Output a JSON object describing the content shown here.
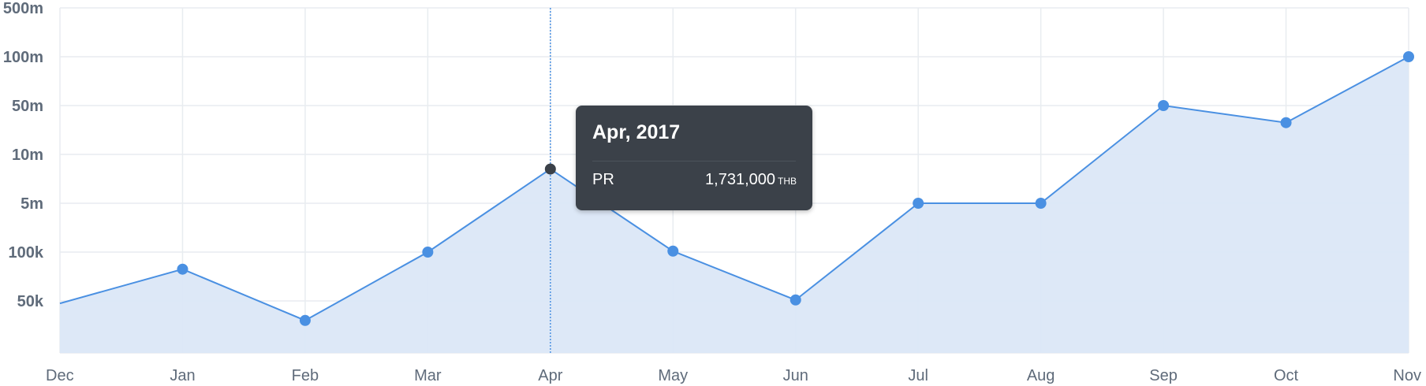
{
  "colors": {
    "line": "#4a90e2",
    "area": "#dbe7f7",
    "grid": "#e8ecf0",
    "axis_text": "#5f6b7a",
    "highlight_point": "#3b4149",
    "tooltip_bg": "#3b4149"
  },
  "tooltip": {
    "title": "Apr, 2017",
    "series": "PR",
    "value": "1,731,000",
    "unit": "THB"
  },
  "chart_data": {
    "type": "area",
    "categories": [
      "Dec",
      "Jan",
      "Feb",
      "Mar",
      "Apr",
      "May",
      "Jun",
      "Jul",
      "Aug",
      "Sep",
      "Oct",
      "Nov"
    ],
    "y_ticks": [
      "500m",
      "100m",
      "50m",
      "10m",
      "5m",
      "100k",
      "50k"
    ],
    "y_tick_levels": [
      7,
      6,
      5,
      4,
      3,
      2,
      1
    ],
    "series": [
      {
        "name": "PR",
        "levels": [
          0.95,
          1.65,
          0.6,
          2.0,
          3.7,
          2.02,
          1.02,
          3.0,
          3.0,
          5.0,
          4.65,
          6.0
        ]
      }
    ],
    "highlighted_index": 4,
    "y_level_range": [
      0,
      7
    ],
    "grid": true,
    "legend": "none"
  }
}
